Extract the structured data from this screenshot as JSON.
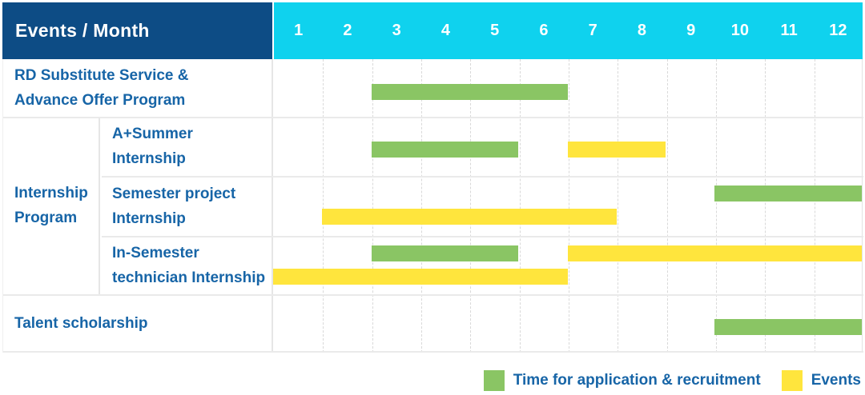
{
  "chart_data": {
    "type": "gantt",
    "corner_label": "Events / Month",
    "months": [
      "1",
      "2",
      "3",
      "4",
      "5",
      "6",
      "7",
      "8",
      "9",
      "10",
      "11",
      "12"
    ],
    "x_range": [
      1,
      12
    ],
    "legend": [
      {
        "key": "application",
        "label": "Time for application & recruitment",
        "color": "#8ac564"
      },
      {
        "key": "events",
        "label": "Events",
        "color": "#ffe53d"
      }
    ],
    "rows": [
      {
        "group": "",
        "label_lines": [
          "RD Substitute Service &",
          "Advance Offer Program"
        ],
        "bars": [
          {
            "type": "application",
            "start_month": 3,
            "end_month": 6,
            "band": "single"
          }
        ]
      },
      {
        "group": "Internship Program",
        "label_lines": [
          "A+Summer",
          "Internship"
        ],
        "bars": [
          {
            "type": "application",
            "start_month": 3,
            "end_month": 5,
            "band": "single"
          },
          {
            "type": "events",
            "start_month": 7,
            "end_month": 8,
            "band": "single"
          }
        ]
      },
      {
        "group": "Internship Program",
        "label_lines": [
          "Semester project",
          "Internship"
        ],
        "bars": [
          {
            "type": "application",
            "start_month": 10,
            "end_month": 12,
            "band": "upper"
          },
          {
            "type": "events",
            "start_month": 2,
            "end_month": 7,
            "band": "lower"
          }
        ]
      },
      {
        "group": "Internship Program",
        "label_lines": [
          "In-Semester",
          "technician Internship"
        ],
        "bars": [
          {
            "type": "application",
            "start_month": 3,
            "end_month": 5,
            "band": "upper"
          },
          {
            "type": "events",
            "start_month": 7,
            "end_month": 12,
            "band": "upper"
          },
          {
            "type": "events",
            "start_month": 1,
            "end_month": 6,
            "band": "lower"
          }
        ]
      },
      {
        "group": "",
        "label_lines": [
          "Talent scholarship",
          ""
        ],
        "bars": [
          {
            "type": "application",
            "start_month": 10,
            "end_month": 12,
            "band": "single"
          }
        ]
      }
    ]
  },
  "colors": {
    "header_navy": "#0d4c85",
    "header_cyan": "#0fd2ee",
    "label_blue": "#1765a7",
    "bar_green": "#8ac564",
    "bar_yellow": "#ffe53d",
    "grid_line": "#d9d9d9",
    "row_border": "#eaeaea"
  }
}
